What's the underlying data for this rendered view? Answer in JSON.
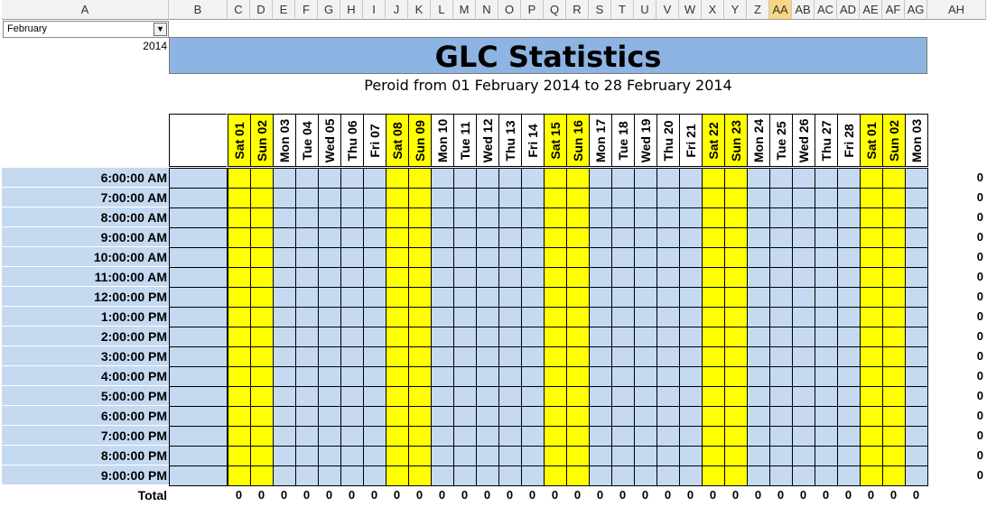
{
  "sheet": {
    "columns": [
      "A",
      "B",
      "C",
      "D",
      "E",
      "F",
      "G",
      "H",
      "I",
      "J",
      "K",
      "L",
      "M",
      "N",
      "O",
      "P",
      "Q",
      "R",
      "S",
      "T",
      "U",
      "V",
      "W",
      "X",
      "Y",
      "Z",
      "AA",
      "AB",
      "AC",
      "AD",
      "AE",
      "AF",
      "AG",
      "AH"
    ],
    "active_column": "AA",
    "month_dropdown": "February",
    "year": "2014",
    "title": "GLC Statistics",
    "period": "Peroid from 01 February 2014 to 28 February 2014",
    "day_headers": [
      "Sat 01",
      "Sun 02",
      "Mon 03",
      "Tue 04",
      "Wed 05",
      "Thu 06",
      "Fri 07",
      "Sat 08",
      "Sun 09",
      "Mon 10",
      "Tue 11",
      "Wed 12",
      "Thu 13",
      "Fri 14",
      "Sat 15",
      "Sun 16",
      "Mon 17",
      "Tue 18",
      "Wed 19",
      "Thu 20",
      "Fri 21",
      "Sat 22",
      "Sun 23",
      "Mon 24",
      "Tue 25",
      "Wed 26",
      "Thu 27",
      "Fri 28",
      "Sat 01",
      "Sun 02",
      "Mon 03"
    ],
    "weekend_days": [
      "Sat 01",
      "Sun 02",
      "Sat 08",
      "Sun 09",
      "Sat 15",
      "Sun 16",
      "Sat 22",
      "Sun 23",
      "Sat 01",
      "Sun 02"
    ],
    "times": [
      "6:00:00 AM",
      "7:00:00 AM",
      "8:00:00 AM",
      "9:00:00 AM",
      "10:00:00 AM",
      "11:00:00 AM",
      "12:00:00 PM",
      "1:00:00 PM",
      "2:00:00 PM",
      "3:00:00 PM",
      "4:00:00 PM",
      "5:00:00 PM",
      "6:00:00 PM",
      "7:00:00 PM",
      "8:00:00 PM",
      "9:00:00 PM"
    ],
    "row_totals": [
      "0",
      "0",
      "0",
      "0",
      "0",
      "0",
      "0",
      "0",
      "0",
      "0",
      "0",
      "0",
      "0",
      "0",
      "0",
      "0"
    ],
    "total_label": "Total",
    "column_totals": [
      "0",
      "0",
      "0",
      "0",
      "0",
      "0",
      "0",
      "0",
      "0",
      "0",
      "0",
      "0",
      "0",
      "0",
      "0",
      "0",
      "0",
      "0",
      "0",
      "0",
      "0",
      "0",
      "0",
      "0",
      "0",
      "0",
      "0",
      "0",
      "0",
      "0",
      "0"
    ],
    "colors": {
      "weekend": "#ffff00",
      "weekday": "#c5d9f1",
      "title_bg": "#8db4e2",
      "active_header": "#f7d781"
    }
  }
}
